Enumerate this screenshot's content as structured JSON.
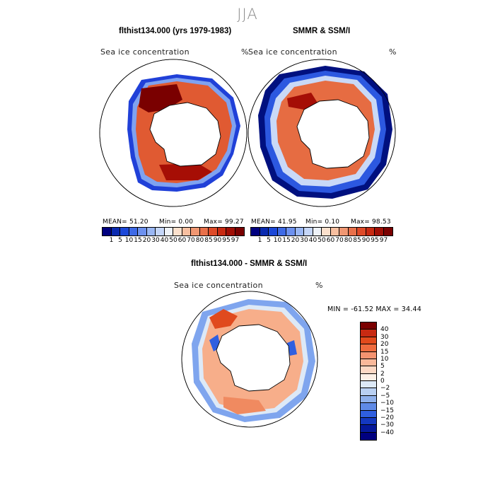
{
  "season": "JJA",
  "panels": {
    "model": {
      "title": "flthist134.000 (yrs 1979-1983)",
      "label": "Sea ice concentration",
      "unit": "%",
      "mean": "MEAN=  51.20",
      "min": "Min=   0.00",
      "max": "Max=  99.27"
    },
    "obs": {
      "title": "SMMR & SSM/I",
      "label": "Sea ice concentration",
      "unit": "%",
      "mean": "MEAN=  41.95",
      "min": "Min=   0.10",
      "max": "Max=  98.53"
    },
    "diff": {
      "title": "flthist134.000 - SMMR & SSM/I",
      "label": "Sea ice concentration",
      "unit": "%",
      "minmax": "MIN = -61.52 MAX =  34.44"
    }
  },
  "colorbar": {
    "labels": [
      "1",
      "5",
      "10",
      "15",
      "20",
      "30",
      "40",
      "50",
      "60",
      "70",
      "80",
      "85",
      "90",
      "95",
      "97"
    ],
    "colors": [
      "#00007f",
      "#0a2ab0",
      "#1c48d8",
      "#3e6ae6",
      "#6d91ef",
      "#9ab7f4",
      "#c5d6f8",
      "#eef2f8",
      "#fbe0cc",
      "#f7bfa0",
      "#f09772",
      "#e8704a",
      "#de4a28",
      "#c82a12",
      "#a00e05",
      "#7a0000"
    ]
  },
  "diff_colorbar": {
    "labels": [
      "40",
      "30",
      "20",
      "15",
      "10",
      "5",
      "2",
      "0",
      "−2",
      "−5",
      "−10",
      "−15",
      "−20",
      "−30",
      "−40"
    ],
    "colors": [
      "#7a0000",
      "#c82a12",
      "#e24a1c",
      "#ef6b3e",
      "#f59370",
      "#f9b89a",
      "#fcd8c4",
      "#fdf0e6",
      "#dde9f7",
      "#b9d0f2",
      "#8fb1ec",
      "#5f8ae6",
      "#2f5fe0",
      "#1438c0",
      "#05189a",
      "#000080"
    ]
  }
}
